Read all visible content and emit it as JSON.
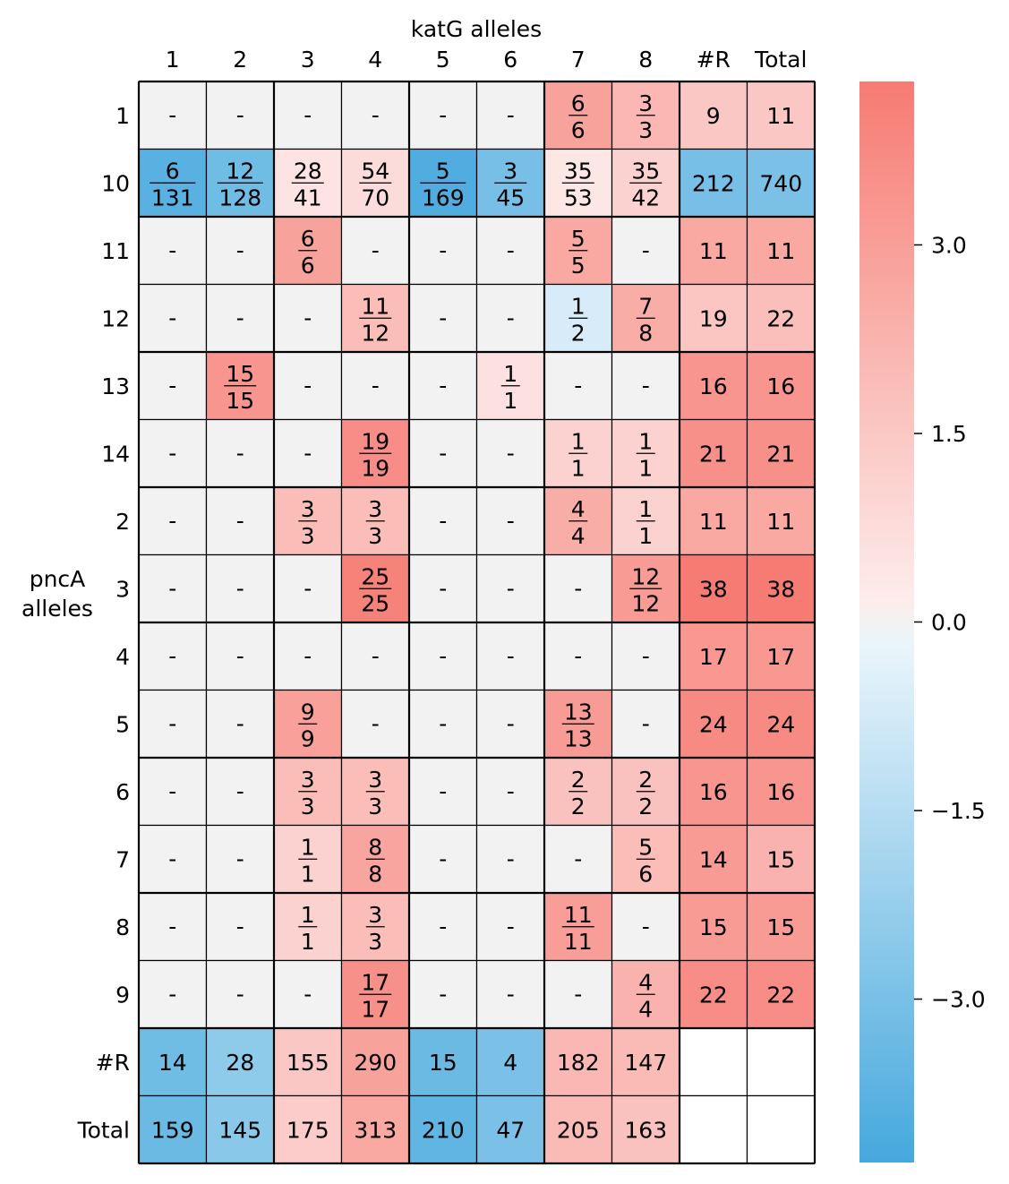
{
  "chart_data": {
    "type": "heatmap",
    "title": "",
    "xlabel": "katG alleles",
    "ylabel": "pncA alleles",
    "x_categories": [
      "1",
      "2",
      "3",
      "4",
      "5",
      "6",
      "7",
      "8",
      "#R",
      "Total"
    ],
    "y_categories": [
      "1",
      "10",
      "11",
      "12",
      "13",
      "14",
      "2",
      "3",
      "4",
      "5",
      "6",
      "7",
      "8",
      "9",
      "#R",
      "Total"
    ],
    "cells": [
      [
        null,
        null,
        null,
        null,
        null,
        null,
        [
          6,
          6
        ],
        [
          3,
          3
        ],
        9,
        11
      ],
      [
        [
          6,
          131
        ],
        [
          12,
          128
        ],
        [
          28,
          41
        ],
        [
          54,
          70
        ],
        [
          5,
          169
        ],
        [
          3,
          45
        ],
        [
          35,
          53
        ],
        [
          35,
          42
        ],
        212,
        740
      ],
      [
        null,
        null,
        [
          6,
          6
        ],
        null,
        null,
        null,
        [
          5,
          5
        ],
        null,
        11,
        11
      ],
      [
        null,
        null,
        null,
        [
          11,
          12
        ],
        null,
        null,
        [
          1,
          2
        ],
        [
          7,
          8
        ],
        19,
        22
      ],
      [
        null,
        [
          15,
          15
        ],
        null,
        null,
        null,
        [
          1,
          1
        ],
        null,
        null,
        16,
        16
      ],
      [
        null,
        null,
        null,
        [
          19,
          19
        ],
        null,
        null,
        [
          1,
          1
        ],
        [
          1,
          1
        ],
        21,
        21
      ],
      [
        null,
        null,
        [
          3,
          3
        ],
        [
          3,
          3
        ],
        null,
        null,
        [
          4,
          4
        ],
        [
          1,
          1
        ],
        11,
        11
      ],
      [
        null,
        null,
        null,
        [
          25,
          25
        ],
        null,
        null,
        null,
        [
          12,
          12
        ],
        38,
        38
      ],
      [
        null,
        null,
        null,
        null,
        null,
        null,
        null,
        null,
        17,
        17
      ],
      [
        null,
        null,
        [
          9,
          9
        ],
        null,
        null,
        null,
        [
          13,
          13
        ],
        null,
        24,
        24
      ],
      [
        null,
        null,
        [
          3,
          3
        ],
        [
          3,
          3
        ],
        null,
        null,
        [
          2,
          2
        ],
        [
          2,
          2
        ],
        16,
        16
      ],
      [
        null,
        null,
        [
          1,
          1
        ],
        [
          8,
          8
        ],
        null,
        null,
        null,
        [
          5,
          6
        ],
        14,
        15
      ],
      [
        null,
        null,
        [
          1,
          1
        ],
        [
          3,
          3
        ],
        null,
        null,
        [
          11,
          11
        ],
        null,
        15,
        15
      ],
      [
        null,
        null,
        null,
        [
          17,
          17
        ],
        null,
        null,
        null,
        [
          4,
          4
        ],
        22,
        22
      ],
      [
        14,
        28,
        155,
        290,
        15,
        4,
        182,
        147,
        null,
        null
      ],
      [
        159,
        145,
        175,
        313,
        210,
        47,
        205,
        163,
        null,
        null
      ]
    ],
    "color_values": [
      [
        0,
        0,
        0,
        0,
        0,
        0,
        2.8,
        2.0,
        1.4,
        1.4
      ],
      [
        -3.8,
        -3.2,
        0.3,
        0.6,
        -4.0,
        -3.0,
        0.2,
        1.0,
        -3.0,
        -2.9
      ],
      [
        0,
        0,
        2.8,
        0,
        0,
        0,
        2.6,
        0,
        2.6,
        2.6
      ],
      [
        0,
        0,
        0,
        1.8,
        0,
        0,
        -0.5,
        2.4,
        1.5,
        1.7
      ],
      [
        0,
        3.3,
        0,
        0,
        0,
        0.4,
        0,
        0,
        3.3,
        3.3
      ],
      [
        0,
        0,
        0,
        3.6,
        0,
        0,
        1.0,
        1.0,
        3.5,
        3.5
      ],
      [
        0,
        0,
        1.8,
        1.8,
        0,
        0,
        2.4,
        1.0,
        2.6,
        2.6
      ],
      [
        0,
        0,
        0,
        4.0,
        0,
        0,
        0,
        3.1,
        4.3,
        4.3
      ],
      [
        0,
        0,
        0,
        0,
        0,
        0,
        0,
        0,
        3.2,
        3.2
      ],
      [
        0,
        0,
        2.9,
        0,
        0,
        0,
        3.1,
        0,
        3.7,
        3.7
      ],
      [
        0,
        0,
        1.8,
        1.8,
        0,
        0,
        1.6,
        1.6,
        3.3,
        3.3
      ],
      [
        0,
        0,
        1.0,
        2.7,
        0,
        0,
        0,
        1.8,
        3.1,
        2.2
      ],
      [
        0,
        0,
        1.0,
        1.8,
        0,
        0,
        3.0,
        0,
        3.1,
        3.1
      ],
      [
        0,
        0,
        0,
        3.5,
        0,
        0,
        0,
        2.2,
        3.6,
        3.6
      ],
      [
        -3.2,
        -2.4,
        1.4,
        2.8,
        -3.3,
        -2.9,
        2.0,
        1.9,
        null,
        null
      ],
      [
        -3.3,
        -2.5,
        1.2,
        2.6,
        -3.6,
        -2.9,
        1.9,
        1.6,
        null,
        null
      ]
    ],
    "empty_cell_label": "-",
    "colorbar": {
      "range": [
        -4.3,
        4.3
      ],
      "ticks": [
        -3.0,
        -1.5,
        0.0,
        1.5,
        3.0
      ],
      "tick_labels": [
        "−3.0",
        "−1.5",
        "0.0",
        "1.5",
        "3.0"
      ],
      "colors": {
        "negative_end": "#45a8dd",
        "near_zero_negative": "#eaf5fb",
        "zero": "#f2f2f2",
        "near_zero_positive": "#fdeceb",
        "positive_end": "#f67b72"
      }
    },
    "grid": true
  }
}
